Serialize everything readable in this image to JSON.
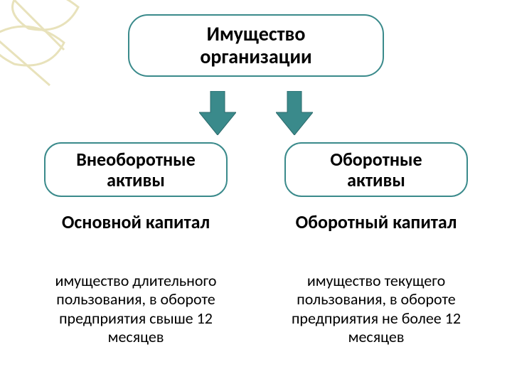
{
  "background_color": "#ffffff",
  "decoration_color": "#e8e2bb",
  "title": {
    "text": "Имущество организации",
    "fontsize": 28,
    "color": "#000000",
    "border_color": "#3a8a8b",
    "bg_color": "#ffffff"
  },
  "arrows": {
    "fill_color": "#3a8a8b",
    "stroke_color": "#2c6b6c",
    "width": 52,
    "height": 62
  },
  "branches": {
    "border_color": "#3a8a8b",
    "bg_color": "#ffffff",
    "fontsize": 26,
    "color": "#000000",
    "left": {
      "text": "Внеоборотные активы"
    },
    "right": {
      "text": "Оборотные активы"
    }
  },
  "subheads": {
    "fontsize": 26,
    "color": "#000000",
    "left": {
      "text": "Основной капитал"
    },
    "right": {
      "text": "Оборотный капитал"
    }
  },
  "descriptions": {
    "fontsize": 22,
    "color": "#000000",
    "left": {
      "text": "имущество длительного пользования, в обороте предприятия свыше 12 месяцев"
    },
    "right": {
      "text": "имущество  текущего пользования, в обороте предприятия не более 12 месяцев"
    }
  }
}
